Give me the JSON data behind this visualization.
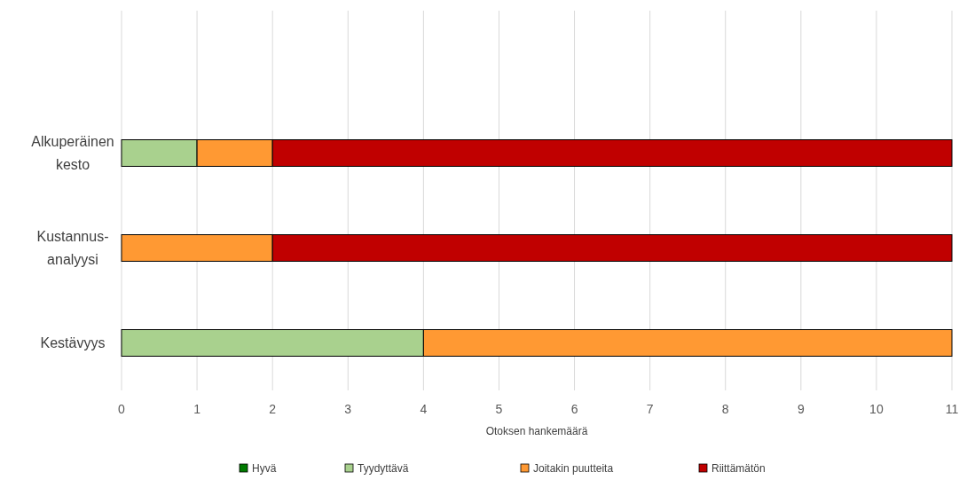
{
  "chart_data": {
    "type": "bar",
    "orientation": "horizontal",
    "stacked": true,
    "xlabel": "Otoksen hankemäärä",
    "categories": [
      null,
      "Alkuperäinen kesto",
      "Kustannus-analyysi",
      "Kestävyys"
    ],
    "series": [
      {
        "name": "Hyvä",
        "color": "#007a00",
        "values": [
          null,
          0,
          0,
          0
        ]
      },
      {
        "name": "Tyydyttävä",
        "color": "#a9d18e",
        "values": [
          null,
          1,
          0,
          4
        ]
      },
      {
        "name": "Joitakin puutteita",
        "color": "#ff9933",
        "values": [
          null,
          1,
          2,
          7
        ]
      },
      {
        "name": "Riittämätön",
        "color": "#c00000",
        "values": [
          null,
          9,
          9,
          0
        ]
      }
    ],
    "xlim": [
      0,
      11
    ],
    "xticks": [
      0,
      1,
      2,
      3,
      4,
      5,
      6,
      7,
      8,
      9,
      10,
      11
    ],
    "grid": "x",
    "legend": "bottom"
  }
}
